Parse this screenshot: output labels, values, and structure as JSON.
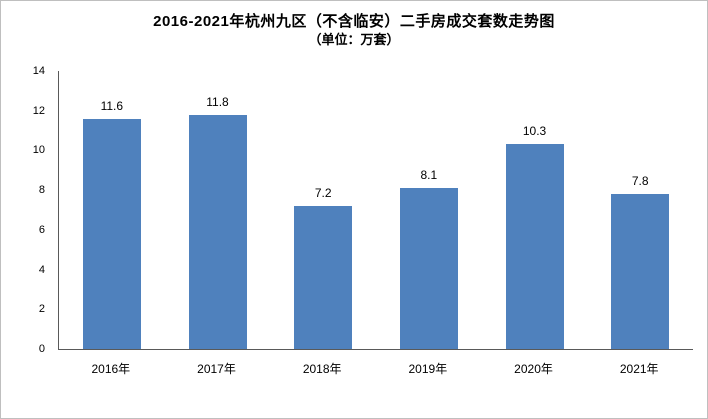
{
  "title": "2016-2021年杭州九区（不含临安）二手房成交套数走势图",
  "subtitle": "（单位：万套）",
  "colors": {
    "bar": "#4F81BD",
    "axis": "#595959",
    "text": "#000000",
    "background": "#FFFFFF",
    "frame": "#BFBFBF"
  },
  "chart_data": {
    "type": "bar",
    "title": "2016-2021年杭州九区（不含临安）二手房成交套数走势图",
    "subtitle": "（单位：万套）",
    "categories": [
      "2016年",
      "2017年",
      "2018年",
      "2019年",
      "2020年",
      "2021年"
    ],
    "values": [
      11.6,
      11.8,
      7.2,
      8.1,
      10.3,
      7.8
    ],
    "xlabel": "",
    "ylabel": "",
    "ylim": [
      0,
      14
    ],
    "ytick_step": 2,
    "grid": false,
    "legend": "none",
    "data_labels": true
  }
}
